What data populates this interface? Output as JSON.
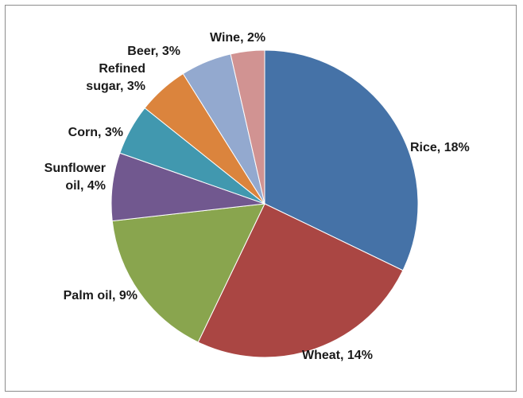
{
  "chart_data": {
    "type": "pie",
    "title": "",
    "start": "12 o'clock",
    "direction": "clockwise",
    "slices": [
      {
        "name": "Rice",
        "value": 18,
        "color": "#4572A7",
        "label": [
          "Rice, 18%"
        ]
      },
      {
        "name": "Wheat",
        "value": 14,
        "color": "#AA4643",
        "label": [
          "Wheat, 14%"
        ]
      },
      {
        "name": "Palm oil",
        "value": 9,
        "color": "#89A54E",
        "label": [
          "Palm oil, 9%"
        ]
      },
      {
        "name": "Sunflower oil",
        "value": 4,
        "color": "#71588F",
        "label": [
          "Sunflower",
          "oil, 4%"
        ]
      },
      {
        "name": "Corn",
        "value": 3,
        "color": "#4198AF",
        "label": [
          "Corn, 3%"
        ]
      },
      {
        "name": "Refined sugar",
        "value": 3,
        "color": "#DB843D",
        "label": [
          "Refined",
          "sugar, 3%"
        ]
      },
      {
        "name": "Beer",
        "value": 3,
        "color": "#93A9CF",
        "label": [
          "Beer, 3%"
        ]
      },
      {
        "name": "Wine",
        "value": 2,
        "color": "#D19392",
        "label": [
          "Wine, 2%"
        ]
      }
    ]
  }
}
